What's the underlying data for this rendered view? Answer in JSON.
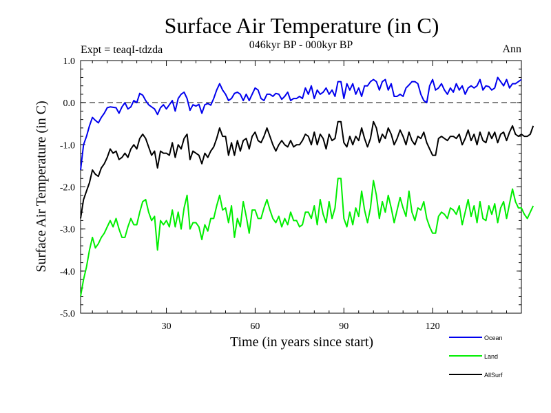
{
  "chart_data": {
    "type": "line",
    "title": "Surface Air Temperature (in C)",
    "subtitle": "046kyr BP - 000kyr BP",
    "experiment_label": "Expt = teaqI-tdzda",
    "period_label": "Ann",
    "xlabel": "Time (in years since start)",
    "ylabel": "Surface Air Temperature (in C)",
    "xlim": [
      1,
      150
    ],
    "ylim": [
      -5.0,
      1.0
    ],
    "x_ticks": [
      30,
      60,
      90,
      120
    ],
    "x_tick_labels": [
      "30",
      "60",
      "90",
      "120"
    ],
    "y_ticks": [
      -5.0,
      -4.0,
      -3.0,
      -2.0,
      -1.0,
      0.0,
      1.0
    ],
    "y_tick_labels": [
      "-5.0",
      "-4.0",
      "-3.0",
      "-2.0",
      "-1.0",
      "0.0",
      "1.0"
    ],
    "reference_line": {
      "y": 0.0,
      "style": "dashed"
    },
    "legend_position": "bottom-right",
    "series": [
      {
        "name": "Ocean",
        "color": "#0000ee",
        "values": [
          -1.6,
          -1.0,
          -0.8,
          -0.55,
          -0.35,
          -0.42,
          -0.48,
          -0.35,
          -0.25,
          -0.12,
          -0.1,
          -0.11,
          -0.12,
          -0.25,
          -0.1,
          0.0,
          -0.15,
          -0.1,
          0.05,
          0.0,
          0.22,
          0.18,
          0.05,
          -0.05,
          -0.1,
          -0.15,
          -0.28,
          -0.12,
          -0.05,
          -0.15,
          -0.05,
          0.05,
          -0.2,
          0.1,
          0.2,
          0.25,
          0.1,
          -0.18,
          -0.05,
          -0.08,
          -0.04,
          -0.25,
          -0.05,
          -0.02,
          -0.06,
          0.1,
          0.3,
          0.45,
          0.3,
          0.2,
          0.05,
          0.1,
          0.22,
          0.25,
          0.2,
          0.05,
          0.2,
          0.05,
          0.2,
          0.35,
          0.3,
          0.1,
          0.05,
          0.2,
          0.2,
          0.15,
          0.22,
          0.2,
          0.08,
          0.15,
          0.25,
          0.05,
          0.1,
          0.1,
          0.15,
          0.1,
          0.35,
          0.2,
          0.4,
          0.1,
          0.3,
          0.2,
          0.25,
          0.35,
          0.2,
          0.3,
          0.15,
          0.5,
          0.5,
          0.1,
          0.45,
          0.3,
          0.45,
          0.2,
          0.35,
          0.15,
          0.4,
          0.4,
          0.5,
          0.55,
          0.5,
          0.3,
          0.5,
          0.55,
          0.3,
          0.45,
          0.15,
          0.15,
          0.2,
          0.15,
          0.35,
          0.42,
          0.5,
          0.5,
          0.45,
          0.2,
          0.05,
          0.0,
          0.4,
          0.55,
          0.3,
          0.35,
          0.45,
          0.3,
          0.2,
          0.35,
          0.25,
          0.45,
          0.3,
          0.4,
          0.2,
          0.35,
          0.4,
          0.35,
          0.4,
          0.55,
          0.3,
          0.4,
          0.38,
          0.3,
          0.35,
          0.6,
          0.5,
          0.4,
          0.55,
          0.35,
          0.45,
          0.45,
          0.5,
          0.55
        ],
        "x_start": 1
      },
      {
        "name": "Land",
        "color": "#00ee00",
        "values": [
          -4.6,
          -4.2,
          -3.9,
          -3.5,
          -3.2,
          -3.45,
          -3.35,
          -3.2,
          -3.1,
          -2.95,
          -2.8,
          -2.95,
          -2.75,
          -3.0,
          -3.2,
          -3.2,
          -2.95,
          -2.75,
          -2.9,
          -2.9,
          -2.6,
          -2.35,
          -2.3,
          -2.6,
          -2.8,
          -2.7,
          -3.5,
          -2.8,
          -2.9,
          -2.8,
          -2.95,
          -2.55,
          -2.95,
          -2.6,
          -3.0,
          -2.5,
          -2.2,
          -3.0,
          -2.85,
          -2.85,
          -2.95,
          -3.25,
          -2.9,
          -3.05,
          -2.75,
          -2.75,
          -2.45,
          -2.2,
          -2.55,
          -2.5,
          -2.85,
          -2.45,
          -3.2,
          -2.75,
          -2.95,
          -2.35,
          -2.7,
          -3.1,
          -2.55,
          -2.55,
          -2.75,
          -2.75,
          -2.5,
          -2.3,
          -2.55,
          -2.75,
          -2.85,
          -2.7,
          -2.95,
          -2.75,
          -2.9,
          -2.6,
          -2.8,
          -2.8,
          -2.95,
          -2.9,
          -2.6,
          -2.6,
          -2.75,
          -2.45,
          -2.9,
          -2.3,
          -2.65,
          -2.85,
          -2.35,
          -2.75,
          -2.5,
          -1.8,
          -1.8,
          -2.75,
          -2.95,
          -2.6,
          -2.9,
          -2.5,
          -2.7,
          -2.1,
          -2.55,
          -2.85,
          -2.5,
          -1.85,
          -2.2,
          -2.75,
          -2.35,
          -2.6,
          -2.2,
          -2.5,
          -2.85,
          -2.55,
          -2.25,
          -2.5,
          -2.7,
          -2.1,
          -2.6,
          -2.8,
          -2.5,
          -2.55,
          -2.35,
          -2.75,
          -2.95,
          -3.1,
          -3.1,
          -2.7,
          -2.6,
          -2.65,
          -2.75,
          -2.5,
          -2.55,
          -2.65,
          -2.45,
          -2.9,
          -2.6,
          -2.3,
          -2.7,
          -2.45,
          -2.85,
          -2.35,
          -2.75,
          -2.8,
          -2.45,
          -2.65,
          -2.4,
          -2.85,
          -2.5,
          -2.35,
          -2.75,
          -2.4,
          -2.05,
          -2.35,
          -2.5,
          -2.5,
          -2.65,
          -2.75,
          -2.6,
          -2.45
        ],
        "x_start": 1
      },
      {
        "name": "AllSurf",
        "color": "#000000",
        "values": [
          -2.75,
          -2.3,
          -2.1,
          -1.9,
          -1.6,
          -1.7,
          -1.75,
          -1.55,
          -1.45,
          -1.3,
          -1.1,
          -1.2,
          -1.15,
          -1.35,
          -1.3,
          -1.2,
          -1.3,
          -1.1,
          -1.0,
          -1.1,
          -0.85,
          -0.75,
          -0.85,
          -1.05,
          -1.25,
          -1.15,
          -1.55,
          -1.15,
          -1.2,
          -1.2,
          -1.25,
          -0.95,
          -1.3,
          -1.0,
          -1.1,
          -0.85,
          -0.75,
          -1.35,
          -1.15,
          -1.2,
          -1.25,
          -1.45,
          -1.2,
          -1.3,
          -1.15,
          -1.05,
          -0.85,
          -0.6,
          -0.8,
          -0.8,
          -1.25,
          -0.95,
          -1.25,
          -0.9,
          -1.15,
          -0.9,
          -0.85,
          -1.1,
          -0.8,
          -0.7,
          -0.9,
          -0.95,
          -0.8,
          -0.6,
          -0.8,
          -1.0,
          -1.15,
          -1.0,
          -0.9,
          -1.0,
          -1.05,
          -0.9,
          -1.05,
          -1.0,
          -1.0,
          -0.9,
          -0.75,
          -0.8,
          -1.0,
          -0.7,
          -1.0,
          -0.75,
          -0.85,
          -1.1,
          -0.75,
          -0.9,
          -0.85,
          -0.45,
          -0.45,
          -0.95,
          -1.05,
          -0.8,
          -1.0,
          -0.8,
          -0.9,
          -0.6,
          -0.85,
          -1.05,
          -0.85,
          -0.45,
          -0.6,
          -0.95,
          -0.75,
          -0.85,
          -0.6,
          -0.75,
          -1.0,
          -0.85,
          -0.65,
          -0.8,
          -1.0,
          -0.7,
          -0.9,
          -1.0,
          -0.8,
          -0.85,
          -0.7,
          -0.95,
          -1.1,
          -1.25,
          -1.25,
          -0.85,
          -0.8,
          -0.85,
          -0.9,
          -0.8,
          -0.8,
          -0.85,
          -0.75,
          -1.0,
          -0.85,
          -0.65,
          -0.9,
          -0.75,
          -1.0,
          -0.7,
          -0.9,
          -0.95,
          -0.7,
          -0.85,
          -0.7,
          -0.95,
          -0.75,
          -0.7,
          -0.9,
          -0.7,
          -0.55,
          -0.75,
          -0.8,
          -0.75,
          -0.8,
          -0.8,
          -0.75,
          -0.55
        ],
        "x_start": 1
      }
    ]
  }
}
